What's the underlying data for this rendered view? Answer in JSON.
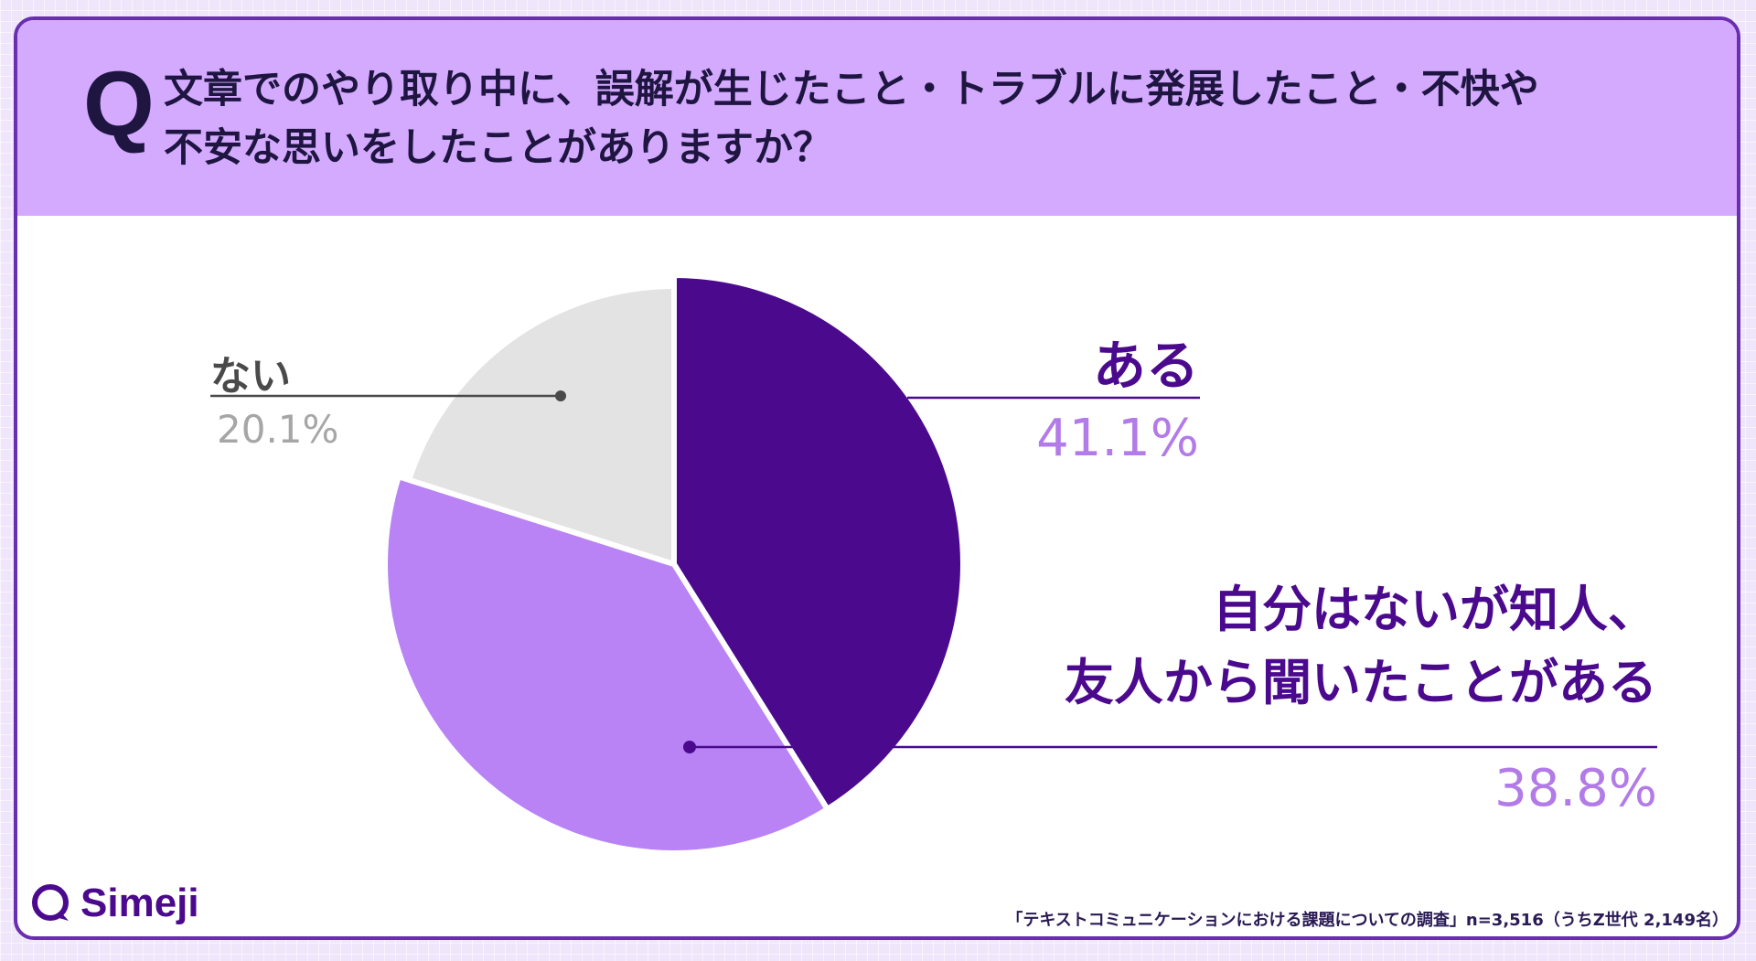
{
  "question": {
    "mark": "Q",
    "line1": "文章でのやり取り中に、誤解が生じたこと・トラブルに発展したこと・不快や",
    "line2": "不安な思いをしたことがありますか？"
  },
  "chart_data": {
    "type": "pie",
    "slices": [
      {
        "label": "ある",
        "value": 41.1,
        "value_label": "41.1%",
        "color": "#4b0a8e"
      },
      {
        "label_line1": "自分はないが知人、",
        "label_line2": "友人から聞いたことがある",
        "value": 38.8,
        "value_label": "38.8%",
        "color": "#b983f5"
      },
      {
        "label": "ない",
        "value": 20.1,
        "value_label": "20.1%",
        "color": "#e3e3e3"
      }
    ]
  },
  "logo": {
    "name": "Simeji"
  },
  "footnote": "「テキストコミュニケーションにおける課題についての調査」n=3,516（うちZ世代 2,149名）"
}
